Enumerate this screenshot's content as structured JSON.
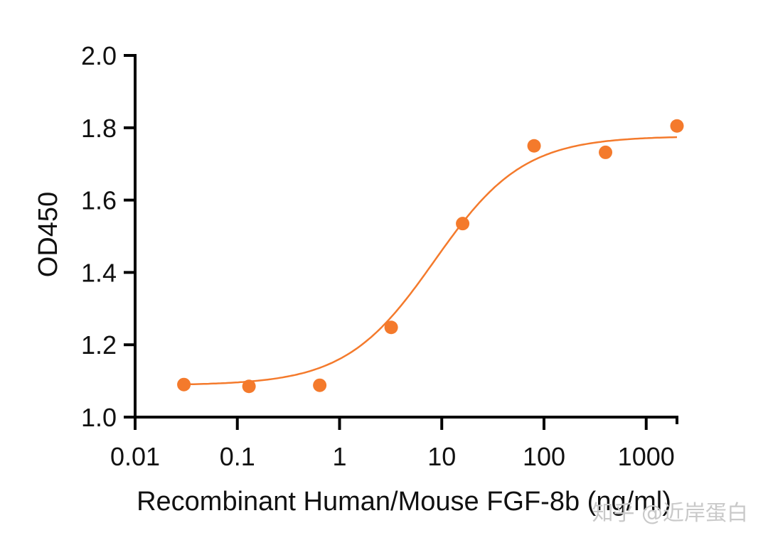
{
  "chart_data": {
    "type": "scatter",
    "xlabel": "Recombinant Human/Mouse FGF-8b (ng/ml)",
    "ylabel": "OD450",
    "xscale": "log",
    "xlim": [
      0.01,
      2000
    ],
    "ylim": [
      1.0,
      2.0
    ],
    "xticks": [
      "0.01",
      "0.1",
      "1",
      "10",
      "100",
      "1000"
    ],
    "xtick_values": [
      0.01,
      0.1,
      1,
      10,
      100,
      1000
    ],
    "yticks": [
      "1.0",
      "1.2",
      "1.4",
      "1.6",
      "1.8",
      "2.0"
    ],
    "ytick_values": [
      1.0,
      1.2,
      1.4,
      1.6,
      1.8,
      2.0
    ],
    "series": [
      {
        "marker": "filled-circle",
        "x": [
          0.03,
          0.13,
          0.64,
          3.2,
          16,
          80,
          400,
          2000
        ],
        "y": [
          1.09,
          1.085,
          1.088,
          1.248,
          1.535,
          1.75,
          1.732,
          1.805
        ],
        "fit": {
          "model": "four-parameter logistic",
          "bottom": 1.088,
          "top": 1.777,
          "ec50": 8.5,
          "hill": 1.0
        }
      }
    ],
    "point_color": "#f47a2c",
    "fit_color": "#f47a2c",
    "grid": false,
    "legend": "none"
  },
  "watermark": {
    "text": "知乎 @近岸蛋白"
  }
}
